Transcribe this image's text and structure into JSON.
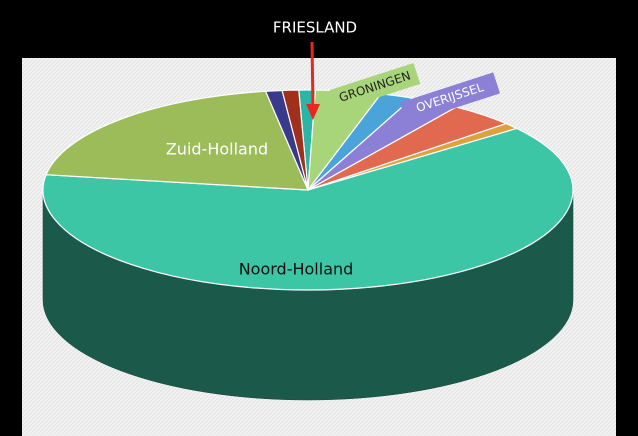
{
  "chart_data": {
    "type": "pie3d",
    "categories": [
      "FRIESLAND",
      "GRONINGEN",
      null,
      "OVERIJSSEL",
      null,
      null,
      "Noord-Holland",
      "Zuid-Holland",
      null,
      null
    ],
    "values": [
      1,
      4,
      2,
      3,
      4,
      1,
      63,
      20,
      1,
      1
    ],
    "colors": [
      "#2ab5a5",
      "#a8d57a",
      "#4aa3d9",
      "#8b7fd6",
      "#e0694f",
      "#e0a040",
      "#3cc6a6",
      "#9cbb59",
      "#3a3a8c",
      "#a0301c"
    ]
  }
}
